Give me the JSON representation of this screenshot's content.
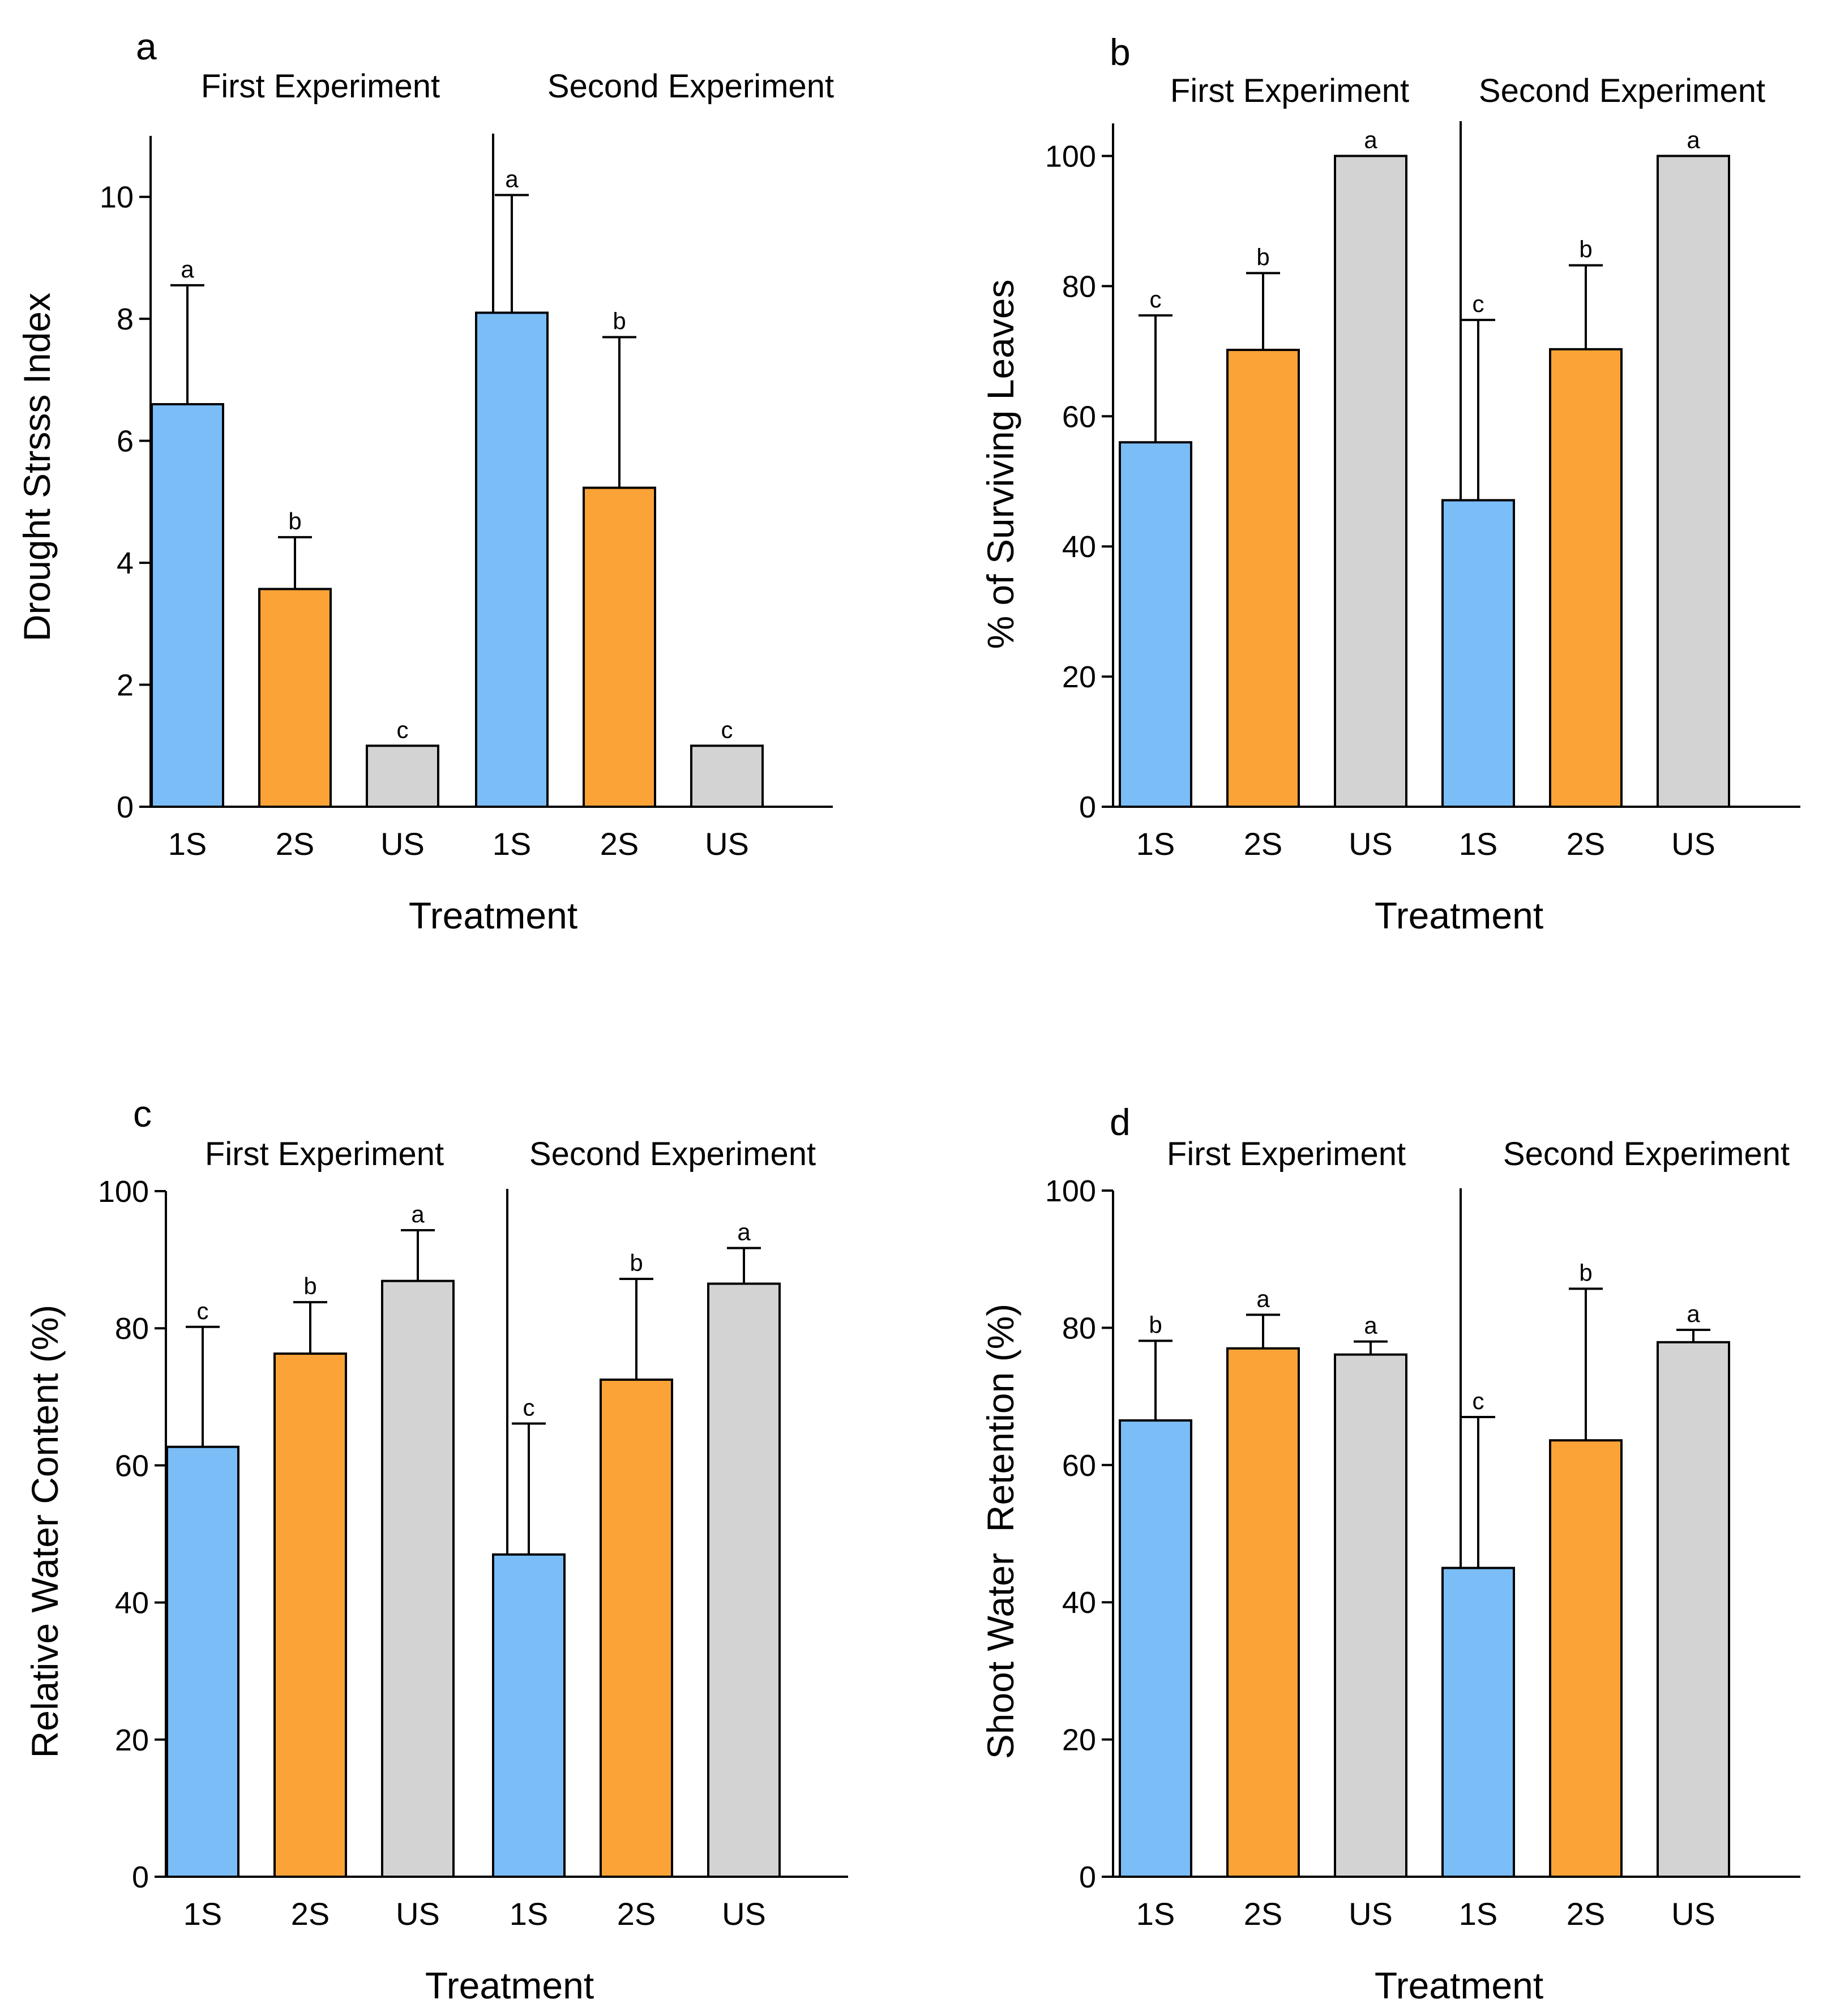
{
  "chart_data": [
    {
      "type": "bar",
      "panel_label": "a",
      "groups": [
        "First Experiment",
        "Second Experiment"
      ],
      "categories": [
        "1S",
        "2S",
        "US"
      ],
      "xlabel": "Treatment",
      "ylabel": "Drought Strsss Index",
      "ylim": [
        0,
        11
      ],
      "yticks": [
        0,
        2,
        4,
        6,
        8,
        10
      ],
      "grid": false,
      "bars": [
        {
          "group": "First Experiment",
          "category": "1S",
          "value": 6.6,
          "error": 1.95,
          "letter": "a"
        },
        {
          "group": "First Experiment",
          "category": "2S",
          "value": 3.57,
          "error": 0.85,
          "letter": "b"
        },
        {
          "group": "First Experiment",
          "category": "US",
          "value": 1.0,
          "error": 0,
          "letter": "c"
        },
        {
          "group": "Second Experiment",
          "category": "1S",
          "value": 8.1,
          "error": 1.93,
          "letter": "a"
        },
        {
          "group": "Second Experiment",
          "category": "2S",
          "value": 5.23,
          "error": 2.47,
          "letter": "b"
        },
        {
          "group": "Second Experiment",
          "category": "US",
          "value": 1.0,
          "error": 0,
          "letter": "c"
        }
      ]
    },
    {
      "type": "bar",
      "panel_label": "b",
      "groups": [
        "First Experiment",
        "Second Experiment"
      ],
      "categories": [
        "1S",
        "2S",
        "US"
      ],
      "xlabel": "Treatment",
      "ylabel": "% of Surviving Leaves",
      "ylim": [
        0,
        105
      ],
      "yticks": [
        0,
        20,
        40,
        60,
        80,
        100
      ],
      "grid": false,
      "bars": [
        {
          "group": "First Experiment",
          "category": "1S",
          "value": 56,
          "error": 19.5,
          "letter": "c"
        },
        {
          "group": "First Experiment",
          "category": "2S",
          "value": 70.2,
          "error": 11.8,
          "letter": "b"
        },
        {
          "group": "First Experiment",
          "category": "US",
          "value": 100,
          "error": 0,
          "letter": "a"
        },
        {
          "group": "Second Experiment",
          "category": "1S",
          "value": 47.1,
          "error": 27.7,
          "letter": "c"
        },
        {
          "group": "Second Experiment",
          "category": "2S",
          "value": 70.3,
          "error": 12.9,
          "letter": "b"
        },
        {
          "group": "Second Experiment",
          "category": "US",
          "value": 100,
          "error": 0,
          "letter": "a"
        }
      ]
    },
    {
      "type": "bar",
      "panel_label": "c",
      "groups": [
        "First Experiment",
        "Second Experiment"
      ],
      "categories": [
        "1S",
        "2S",
        "US"
      ],
      "xlabel": "Treatment",
      "ylabel": "Relative Water Content (%)",
      "ylim": [
        0,
        100
      ],
      "yticks": [
        0,
        20,
        40,
        60,
        80,
        100
      ],
      "grid": false,
      "bars": [
        {
          "group": "First Experiment",
          "category": "1S",
          "value": 62.7,
          "error": 17.5,
          "letter": "c"
        },
        {
          "group": "First Experiment",
          "category": "2S",
          "value": 76.3,
          "error": 7.5,
          "letter": "b"
        },
        {
          "group": "First Experiment",
          "category": "US",
          "value": 86.9,
          "error": 7.4,
          "letter": "a"
        },
        {
          "group": "Second Experiment",
          "category": "1S",
          "value": 47.0,
          "error": 19.1,
          "letter": "c"
        },
        {
          "group": "Second Experiment",
          "category": "2S",
          "value": 72.5,
          "error": 14.7,
          "letter": "b"
        },
        {
          "group": "Second Experiment",
          "category": "US",
          "value": 86.5,
          "error": 5.2,
          "letter": "a"
        }
      ]
    },
    {
      "type": "bar",
      "panel_label": "d",
      "groups": [
        "First Experiment",
        "Second Experiment"
      ],
      "categories": [
        "1S",
        "2S",
        "US"
      ],
      "xlabel": "Treatment",
      "ylabel": "Shoot Water  Retention (%)",
      "ylim": [
        0,
        100
      ],
      "yticks": [
        0,
        20,
        40,
        60,
        80,
        100
      ],
      "grid": false,
      "bars": [
        {
          "group": "First Experiment",
          "category": "1S",
          "value": 66.5,
          "error": 11.6,
          "letter": "b"
        },
        {
          "group": "First Experiment",
          "category": "2S",
          "value": 77.0,
          "error": 4.9,
          "letter": "a"
        },
        {
          "group": "First Experiment",
          "category": "US",
          "value": 76.1,
          "error": 1.9,
          "letter": "a"
        },
        {
          "group": "Second Experiment",
          "category": "1S",
          "value": 45.0,
          "error": 22.0,
          "letter": "c"
        },
        {
          "group": "Second Experiment",
          "category": "2S",
          "value": 63.6,
          "error": 22.1,
          "letter": "b"
        },
        {
          "group": "Second Experiment",
          "category": "US",
          "value": 77.9,
          "error": 1.8,
          "letter": "a"
        }
      ]
    }
  ],
  "colors": {
    "1S": "#7abdf7",
    "2S": "#fca337",
    "US": "#d3d3d3",
    "outline": "#000000"
  }
}
